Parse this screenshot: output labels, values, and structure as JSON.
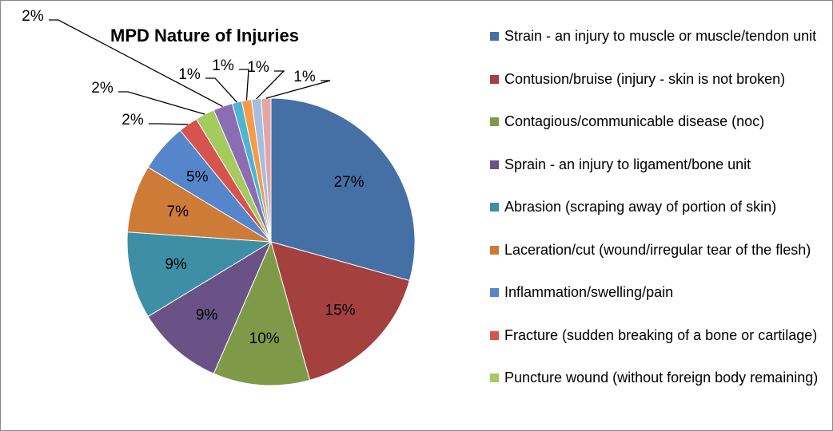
{
  "chart_data": {
    "type": "pie",
    "title": "MPD Nature of Injuries",
    "categories": [
      "Strain - an injury to muscle or muscle/tendon unit",
      "Contusion/bruise (injury - skin is not broken)",
      "Contagious/communicable disease (noc)",
      "Sprain - an injury to ligament/bone unit",
      "Abrasion (scraping away of portion of skin)",
      "Laceration/cut (wound/irregular tear of the flesh)",
      "Inflammation/swelling/pain",
      "Fracture (sudden breaking of a bone or cartilage)",
      "Puncture wound (without foreign body remaining)",
      null,
      null,
      null,
      null,
      null
    ],
    "values": [
      27,
      15,
      10,
      9,
      9,
      7,
      5,
      2,
      2,
      2,
      1,
      1,
      1,
      1
    ],
    "value_labels": [
      "27%",
      "15%",
      "10%",
      "9%",
      "9%",
      "7%",
      "5%",
      "2%",
      "2%",
      "2%",
      "1%",
      "1%",
      "1%",
      "1%"
    ],
    "colors": [
      "#4470a6",
      "#a4403d",
      "#7e9a48",
      "#6a5287",
      "#3e8fa6",
      "#cd7b37",
      "#5586cc",
      "#d6534e",
      "#a4cb5e",
      "#8a6db3",
      "#4eb4d1",
      "#f89a4a",
      "#a6bde3",
      "#e3a6a5"
    ],
    "legend": "right"
  }
}
